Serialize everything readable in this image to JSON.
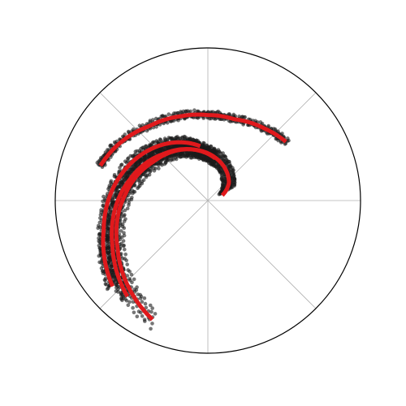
{
  "chart_data": {
    "type": "scatter",
    "coordinate_system": "polar",
    "title": "",
    "radial_range": [
      0,
      1
    ],
    "angular_grid_deg": [
      0,
      45,
      90,
      135,
      180,
      225,
      270,
      315
    ],
    "grid": true,
    "legend": "none",
    "colors": {
      "points": "#1a1a1a",
      "arms": "#e0191c",
      "grid": "#b0b0b0",
      "boundary": "#000000"
    },
    "arms": [
      {
        "points": [
          [
            0.74,
            162
          ],
          [
            0.7,
            150
          ],
          [
            0.62,
            128
          ],
          [
            0.58,
            108
          ],
          [
            0.56,
            90
          ],
          [
            0.56,
            72
          ],
          [
            0.6,
            52
          ],
          [
            0.64,
            37
          ]
        ]
      },
      {
        "points": [
          [
            0.1,
            20
          ],
          [
            0.18,
            40
          ],
          [
            0.25,
            66
          ],
          [
            0.31,
            90
          ],
          [
            0.37,
            115
          ],
          [
            0.44,
            145
          ],
          [
            0.54,
            175
          ],
          [
            0.67,
            208
          ],
          [
            0.86,
            245
          ]
        ]
      },
      {
        "points": [
          [
            0.28,
            80
          ],
          [
            0.34,
            103
          ],
          [
            0.42,
            133
          ],
          [
            0.53,
            165
          ],
          [
            0.69,
            205
          ],
          [
            0.82,
            230
          ]
        ]
      },
      {
        "points": [
          [
            0.36,
            98
          ],
          [
            0.45,
            123
          ],
          [
            0.56,
            154
          ],
          [
            0.71,
            196
          ],
          [
            0.84,
            222
          ]
        ]
      }
    ],
    "point_bands": [
      {
        "arm": 0,
        "t_from": 0.0,
        "t_to": 1.0,
        "n": 140,
        "offsets": [
          -0.015,
          0.0,
          0.02
        ]
      },
      {
        "arm": 1,
        "t_from": 0.05,
        "t_to": 1.0,
        "n": 150,
        "offsets": [
          -0.05,
          -0.025,
          0.0,
          0.025,
          0.05
        ]
      },
      {
        "arm": 2,
        "t_from": 0.0,
        "t_to": 1.0,
        "n": 140,
        "offsets": [
          -0.04,
          -0.02,
          0.0,
          0.02,
          0.04
        ]
      },
      {
        "arm": 3,
        "t_from": 0.0,
        "t_to": 1.0,
        "n": 130,
        "offsets": [
          -0.03,
          -0.01,
          0.01,
          0.03
        ]
      }
    ]
  }
}
